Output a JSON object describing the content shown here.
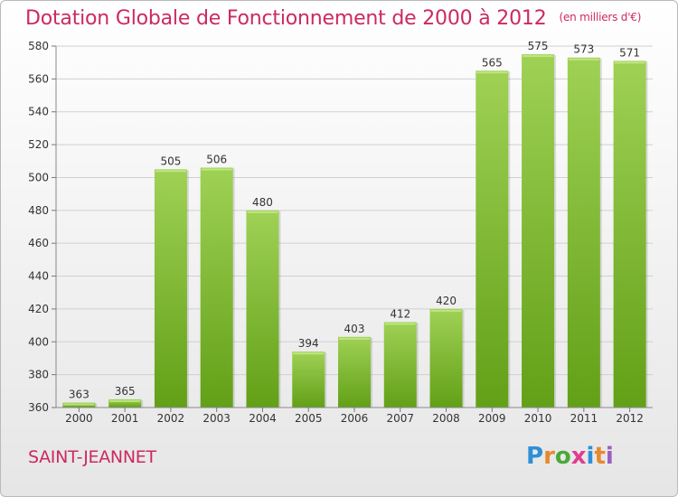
{
  "header": {
    "title": "Dotation Globale de Fonctionnement de 2000 à 2012",
    "unit": "(en milliers d'€)"
  },
  "footer": {
    "commune": "SAINT-JEANNET",
    "logo_text": "Proxiti",
    "logo_colors": [
      "#2f8fd6",
      "#e8892d",
      "#4aa83a",
      "#e03d8f",
      "#2f8fd6",
      "#e8892d",
      "#9a5fc0"
    ]
  },
  "chart_data": {
    "type": "bar",
    "categories": [
      "2000",
      "2001",
      "2002",
      "2003",
      "2004",
      "2005",
      "2006",
      "2007",
      "2008",
      "2009",
      "2010",
      "2011",
      "2012"
    ],
    "values": [
      363,
      365,
      505,
      506,
      480,
      394,
      403,
      412,
      420,
      565,
      575,
      573,
      571
    ],
    "ylim": [
      360,
      580
    ],
    "yticks": [
      360,
      380,
      400,
      420,
      440,
      460,
      480,
      500,
      520,
      540,
      560,
      580
    ],
    "grid": true,
    "colors": {
      "bar_top": "#9fd155",
      "bar_bottom": "#62a017",
      "grid": "#d0d0d0",
      "text": "#333333"
    }
  }
}
